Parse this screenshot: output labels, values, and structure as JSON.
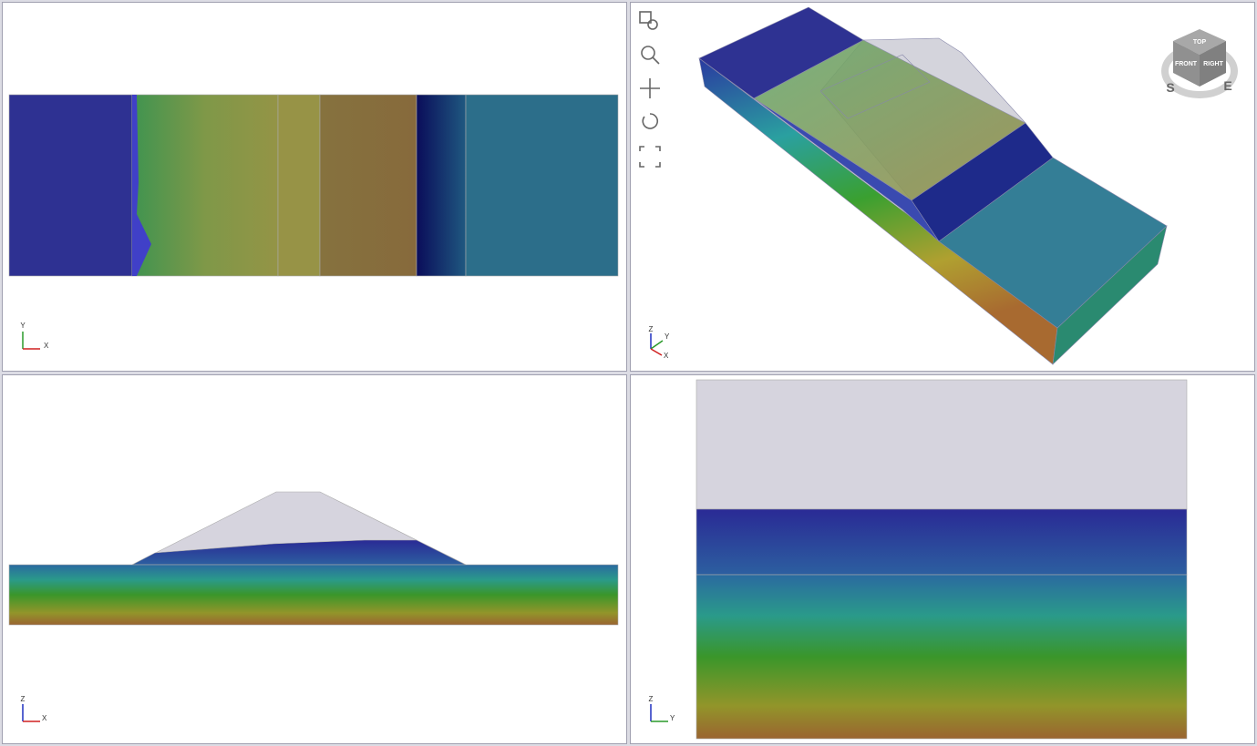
{
  "viewports": [
    {
      "axes": [
        "Y",
        "X"
      ]
    },
    {
      "axes": [
        "Z",
        "Y",
        "X"
      ]
    },
    {
      "axes": [
        "Z",
        "X"
      ]
    },
    {
      "axes": [
        "Z",
        "Y"
      ]
    }
  ],
  "view_cube": {
    "faces": [
      "TOP",
      "FRONT",
      "RIGHT"
    ],
    "compass": [
      "S",
      "E"
    ]
  }
}
